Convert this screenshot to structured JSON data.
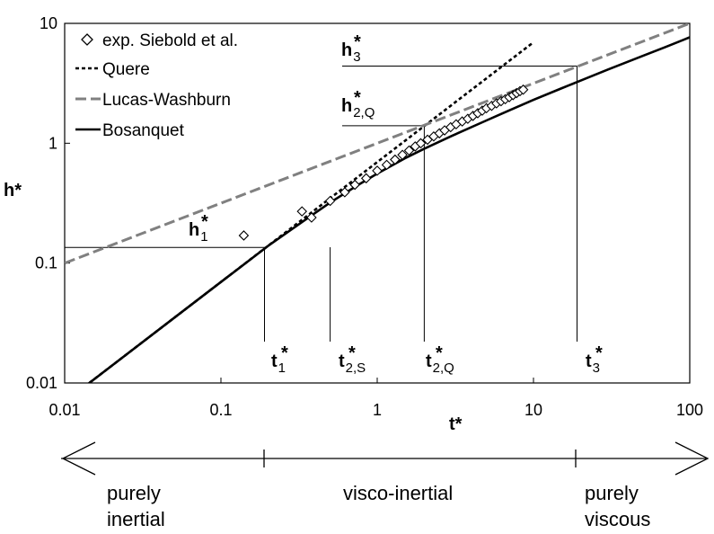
{
  "chart_data": {
    "type": "line",
    "scale": "log-log",
    "xlabel": "t*",
    "ylabel": "h*",
    "xlim": [
      0.01,
      100
    ],
    "ylim": [
      0.01,
      10
    ],
    "x_ticks": [
      {
        "value": 0.01,
        "label": "0.01"
      },
      {
        "value": 0.1,
        "label": "0.1"
      },
      {
        "value": 1,
        "label": "1"
      },
      {
        "value": 10,
        "label": "10"
      },
      {
        "value": 100,
        "label": "100"
      }
    ],
    "y_ticks": [
      {
        "value": 0.01,
        "label": "0.01"
      },
      {
        "value": 0.1,
        "label": "0.1"
      },
      {
        "value": 1,
        "label": "1"
      },
      {
        "value": 10,
        "label": "10"
      }
    ],
    "legend": {
      "position": "top-left",
      "entries": [
        {
          "key": "exp",
          "label": "exp. Siebold et al."
        },
        {
          "key": "quere",
          "label": "Quere"
        },
        {
          "key": "lw",
          "label": "Lucas-Washburn"
        },
        {
          "key": "bosanquet",
          "label": "Bosanquet"
        }
      ]
    },
    "series": [
      {
        "name": "exp. Siebold et al.",
        "key": "exp",
        "style": "diamond",
        "x": [
          0.14,
          0.33,
          0.38,
          0.5,
          0.62,
          0.72,
          0.85,
          1.0,
          1.15,
          1.3,
          1.45,
          1.6,
          1.75,
          1.9,
          2.1,
          2.3,
          2.5,
          2.7,
          2.95,
          3.2,
          3.5,
          3.8,
          4.1,
          4.4,
          4.7,
          5.0,
          5.4,
          5.8,
          6.2,
          6.6,
          7.0,
          7.4,
          7.8,
          8.2,
          8.6
        ],
        "y": [
          0.17,
          0.27,
          0.24,
          0.33,
          0.39,
          0.45,
          0.51,
          0.59,
          0.66,
          0.73,
          0.8,
          0.87,
          0.94,
          1.0,
          1.07,
          1.14,
          1.21,
          1.28,
          1.36,
          1.44,
          1.52,
          1.6,
          1.69,
          1.78,
          1.87,
          1.96,
          2.05,
          2.15,
          2.24,
          2.33,
          2.42,
          2.52,
          2.62,
          2.72,
          2.8
        ]
      },
      {
        "name": "Quere",
        "key": "quere",
        "style": "dotted",
        "color": "#000000",
        "x": [
          0.01,
          10
        ],
        "y": [
          0.00696,
          6.96
        ]
      },
      {
        "name": "Lucas-Washburn",
        "key": "lw",
        "style": "dashed",
        "color": "#808080",
        "x": [
          0.01,
          100
        ],
        "y": [
          0.1,
          10.0
        ]
      },
      {
        "name": "Bosanquet",
        "key": "bosanquet",
        "style": "solid",
        "color": "#000000",
        "x": [
          0.01,
          0.02,
          0.05,
          0.1,
          0.2,
          0.35,
          0.5,
          0.75,
          1,
          1.5,
          2,
          3,
          5,
          7,
          10,
          15,
          20,
          30,
          50,
          70,
          100
        ],
        "y": [
          0.00696,
          0.0139,
          0.0348,
          0.0696,
          0.139,
          0.232,
          0.32,
          0.447,
          0.558,
          0.747,
          0.9,
          1.15,
          1.55,
          1.88,
          2.3,
          2.86,
          3.33,
          4.12,
          5.35,
          6.35,
          7.65
        ]
      }
    ],
    "reference_lines": [
      {
        "key": "t1",
        "x": 0.19,
        "y": 0.135,
        "label": "t",
        "sub": "1",
        "hlabel": "h",
        "hsub": "1"
      },
      {
        "key": "t2s",
        "x": 0.5,
        "label": "t",
        "sub": "2,S"
      },
      {
        "key": "t2q",
        "x": 2.0,
        "y": 1.4,
        "label": "t",
        "sub": "2,Q",
        "hlabel": "h",
        "hsub": "2,Q"
      },
      {
        "key": "t3",
        "x": 19,
        "y": 4.4,
        "label": "t",
        "sub": "3",
        "hlabel": "h",
        "hsub": "3"
      }
    ],
    "regimes": [
      {
        "key": "inertial",
        "line1": "purely",
        "line2": "inertial"
      },
      {
        "key": "visco",
        "line1": "visco-inertial",
        "line2": ""
      },
      {
        "key": "viscous",
        "line1": "purely",
        "line2": "viscous"
      }
    ]
  }
}
